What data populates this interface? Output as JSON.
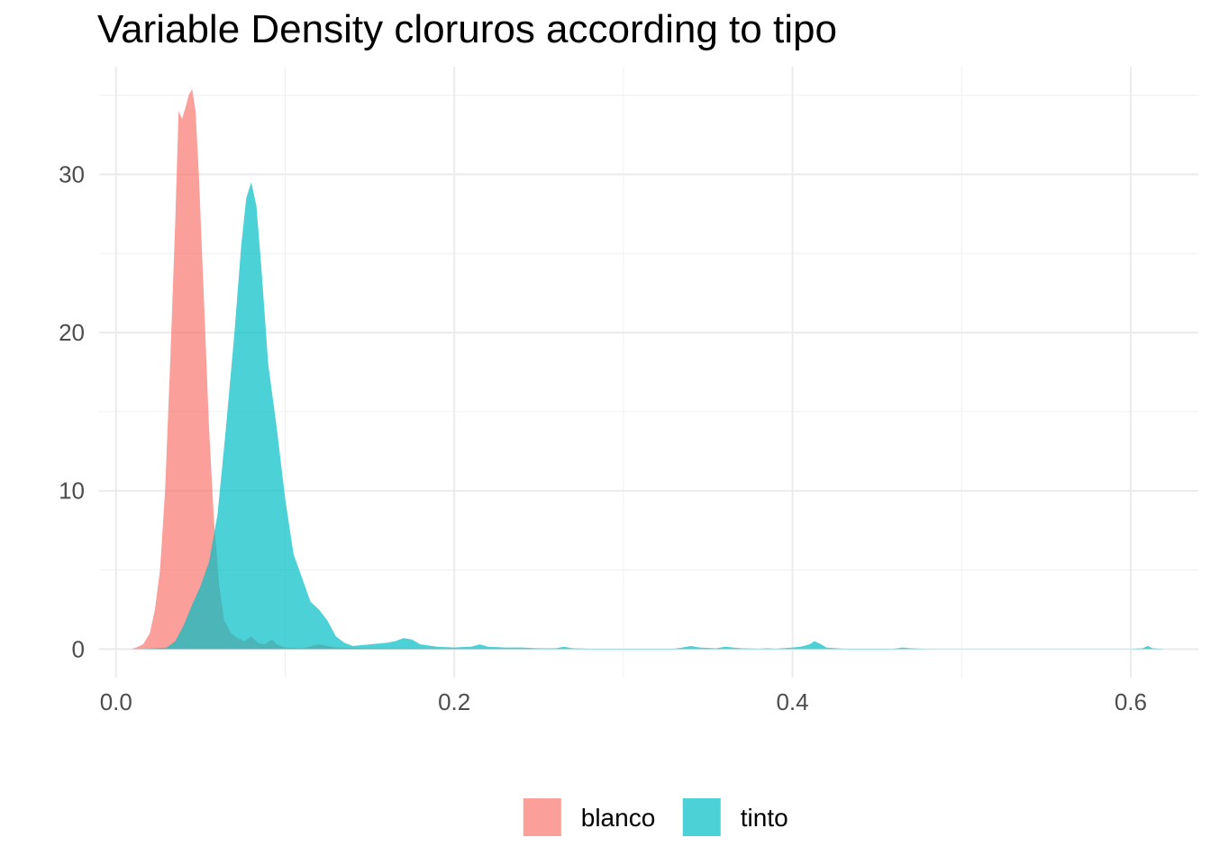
{
  "chart_data": {
    "type": "area",
    "title": "Variable Density cloruros according to tipo",
    "xlabel": "",
    "ylabel": "",
    "xlim": [
      -0.01,
      0.64
    ],
    "ylim": [
      -1.8,
      36.8
    ],
    "x_ticks": [
      0.0,
      0.2,
      0.4,
      0.6
    ],
    "x_tick_labels": [
      "0.0",
      "0.2",
      "0.4",
      "0.6"
    ],
    "y_ticks": [
      0,
      10,
      20,
      30
    ],
    "y_tick_labels": [
      "0",
      "10",
      "20",
      "30"
    ],
    "grid": true,
    "legend_position": "bottom",
    "series": [
      {
        "name": "blanco",
        "color": "#F8766D",
        "points": [
          [
            0.009,
            0
          ],
          [
            0.012,
            0.1
          ],
          [
            0.016,
            0.3
          ],
          [
            0.02,
            1.0
          ],
          [
            0.023,
            2.5
          ],
          [
            0.026,
            5.0
          ],
          [
            0.029,
            10.0
          ],
          [
            0.032,
            18.0
          ],
          [
            0.035,
            27.0
          ],
          [
            0.037,
            34.0
          ],
          [
            0.039,
            33.5
          ],
          [
            0.041,
            34.2
          ],
          [
            0.043,
            35.0
          ],
          [
            0.045,
            35.4
          ],
          [
            0.047,
            34.0
          ],
          [
            0.049,
            30.0
          ],
          [
            0.052,
            22.0
          ],
          [
            0.055,
            14.0
          ],
          [
            0.058,
            8.0
          ],
          [
            0.061,
            4.0
          ],
          [
            0.064,
            1.8
          ],
          [
            0.068,
            1.0
          ],
          [
            0.072,
            0.7
          ],
          [
            0.076,
            0.5
          ],
          [
            0.08,
            0.8
          ],
          [
            0.084,
            0.4
          ],
          [
            0.088,
            0.3
          ],
          [
            0.092,
            0.6
          ],
          [
            0.095,
            0.3
          ],
          [
            0.1,
            0.1
          ],
          [
            0.11,
            0.05
          ],
          [
            0.12,
            0.3
          ],
          [
            0.13,
            0.1
          ],
          [
            0.15,
            0.05
          ],
          [
            0.2,
            0.02
          ],
          [
            0.25,
            0
          ]
        ]
      },
      {
        "name": "tinto",
        "color": "#00BFC4",
        "points": [
          [
            0.012,
            0
          ],
          [
            0.02,
            0.02
          ],
          [
            0.03,
            0.1
          ],
          [
            0.035,
            0.5
          ],
          [
            0.04,
            1.5
          ],
          [
            0.045,
            2.8
          ],
          [
            0.05,
            4.0
          ],
          [
            0.055,
            5.5
          ],
          [
            0.06,
            8.5
          ],
          [
            0.065,
            14.0
          ],
          [
            0.07,
            20.0
          ],
          [
            0.074,
            25.5
          ],
          [
            0.077,
            28.5
          ],
          [
            0.08,
            29.5
          ],
          [
            0.083,
            28.0
          ],
          [
            0.086,
            24.0
          ],
          [
            0.09,
            18.0
          ],
          [
            0.095,
            14.0
          ],
          [
            0.1,
            9.5
          ],
          [
            0.105,
            6.0
          ],
          [
            0.11,
            4.5
          ],
          [
            0.115,
            3.0
          ],
          [
            0.12,
            2.5
          ],
          [
            0.125,
            1.8
          ],
          [
            0.13,
            0.8
          ],
          [
            0.135,
            0.4
          ],
          [
            0.14,
            0.2
          ],
          [
            0.15,
            0.3
          ],
          [
            0.16,
            0.4
          ],
          [
            0.165,
            0.5
          ],
          [
            0.17,
            0.7
          ],
          [
            0.175,
            0.6
          ],
          [
            0.18,
            0.3
          ],
          [
            0.19,
            0.15
          ],
          [
            0.2,
            0.1
          ],
          [
            0.21,
            0.15
          ],
          [
            0.215,
            0.3
          ],
          [
            0.22,
            0.15
          ],
          [
            0.23,
            0.1
          ],
          [
            0.24,
            0.1
          ],
          [
            0.25,
            0.05
          ],
          [
            0.26,
            0.05
          ],
          [
            0.265,
            0.15
          ],
          [
            0.27,
            0.05
          ],
          [
            0.28,
            0.02
          ],
          [
            0.33,
            0.02
          ],
          [
            0.335,
            0.1
          ],
          [
            0.34,
            0.2
          ],
          [
            0.345,
            0.1
          ],
          [
            0.355,
            0.05
          ],
          [
            0.36,
            0.15
          ],
          [
            0.365,
            0.1
          ],
          [
            0.37,
            0.05
          ],
          [
            0.38,
            0.02
          ],
          [
            0.385,
            0.05
          ],
          [
            0.39,
            0.02
          ],
          [
            0.4,
            0.1
          ],
          [
            0.405,
            0.15
          ],
          [
            0.41,
            0.3
          ],
          [
            0.413,
            0.5
          ],
          [
            0.417,
            0.3
          ],
          [
            0.42,
            0.1
          ],
          [
            0.43,
            0.02
          ],
          [
            0.46,
            0.02
          ],
          [
            0.465,
            0.1
          ],
          [
            0.47,
            0.05
          ],
          [
            0.48,
            0.01
          ],
          [
            0.6,
            0.01
          ],
          [
            0.607,
            0.05
          ],
          [
            0.61,
            0.2
          ],
          [
            0.613,
            0.05
          ],
          [
            0.62,
            0
          ]
        ]
      }
    ]
  }
}
